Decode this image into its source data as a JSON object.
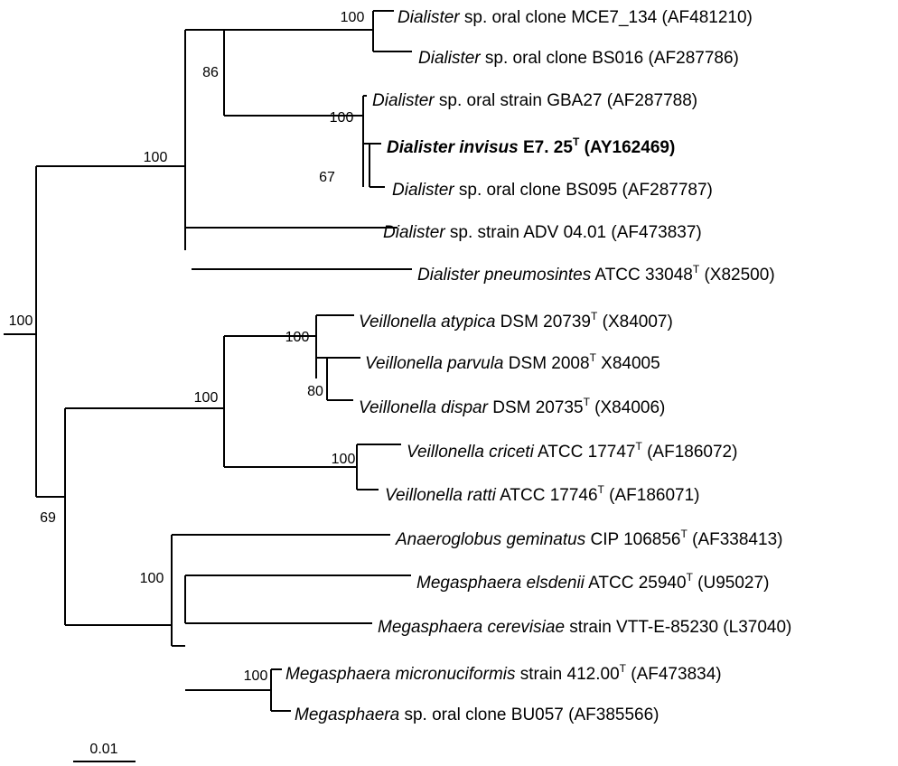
{
  "scale_bar": {
    "label": "0.01"
  },
  "taxa": [
    {
      "id": "t1",
      "genus": "Dialister",
      "rest": " sp. oral clone MCE7_134 (AF481210)"
    },
    {
      "id": "t2",
      "genus": "Dialister",
      "rest": " sp. oral clone BS016 (AF287786)"
    },
    {
      "id": "t3",
      "genus": "Dialister",
      "rest": " sp. oral strain GBA27 (AF287788)"
    },
    {
      "id": "t4",
      "genus": "Dialister invisus",
      "rest": " E7. 25",
      "sup": "T",
      "after": " (AY162469)",
      "highlight": true
    },
    {
      "id": "t5",
      "genus": "Dialister",
      "rest": " sp. oral clone BS095 (AF287787)"
    },
    {
      "id": "t6",
      "genus": "Dialister",
      "rest": " sp. strain ADV 04.01 (AF473837)"
    },
    {
      "id": "t7",
      "genus": "Dialister pneumosintes",
      "rest": " ATCC 33048",
      "sup": "T",
      "after": " (X82500)"
    },
    {
      "id": "t8",
      "genus": "Veillonella atypica",
      "rest": " DSM 20739",
      "sup": "T",
      "after": " (X84007)"
    },
    {
      "id": "t9",
      "genus": "Veillonella parvula",
      "rest": " DSM 2008",
      "sup": "T",
      "after": " X84005"
    },
    {
      "id": "t10",
      "genus": "Veillonella dispar",
      "rest": " DSM 20735",
      "sup": "T",
      "after": " (X84006)"
    },
    {
      "id": "t11",
      "genus": "Veillonella criceti",
      "rest": " ATCC 17747",
      "sup": "T",
      "after": " (AF186072)"
    },
    {
      "id": "t12",
      "genus": "Veillonella ratti",
      "rest": " ATCC 17746",
      "sup": "T",
      "after": " (AF186071)"
    },
    {
      "id": "t13",
      "genus": "Anaeroglobus geminatus",
      "rest": " CIP 106856",
      "sup": "T",
      "after": " (AF338413)"
    },
    {
      "id": "t14",
      "genus": "Megasphaera elsdenii",
      "rest": " ATCC 25940",
      "sup": "T",
      "after": " (U95027)"
    },
    {
      "id": "t15",
      "genus": "Megasphaera cerevisiae",
      "rest": " strain VTT-E-85230 (L37040)"
    },
    {
      "id": "t16",
      "genus": "Megasphaera micronuciformis",
      "rest": " strain 412.00",
      "sup": "T",
      "after": " (AF473834)"
    },
    {
      "id": "t17",
      "genus": "Megasphaera",
      "rest": " sp. oral clone BU057 (AF385566)"
    }
  ],
  "bootstrap": [
    "100",
    "86",
    "100",
    "67",
    "100",
    "100",
    "100",
    "100",
    "80",
    "100",
    "69",
    "100",
    "100"
  ]
}
